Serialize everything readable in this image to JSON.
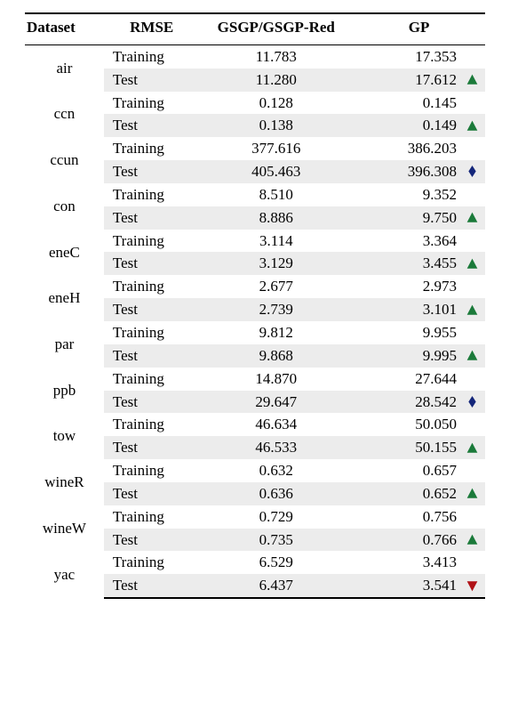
{
  "columns": {
    "dataset": "Dataset",
    "rmse": "RMSE",
    "gsgp": "GSGP/GSGP-Red",
    "gp": "GP"
  },
  "row_labels": {
    "training": "Training",
    "test": "Test"
  },
  "marker_colors": {
    "up": "#1b7a3a",
    "down": "#b01217",
    "diamond": "#14267a"
  },
  "alt_bg": "#ececec",
  "datasets": [
    {
      "name": "air",
      "training": {
        "gsgp": "11.783",
        "gp": "17.353"
      },
      "test": {
        "gsgp": "11.280",
        "gp": "17.612",
        "marker": "up"
      }
    },
    {
      "name": "ccn",
      "training": {
        "gsgp": "0.128",
        "gp": "0.145"
      },
      "test": {
        "gsgp": "0.138",
        "gp": "0.149",
        "marker": "up"
      }
    },
    {
      "name": "ccun",
      "training": {
        "gsgp": "377.616",
        "gp": "386.203"
      },
      "test": {
        "gsgp": "405.463",
        "gp": "396.308",
        "marker": "diamond"
      }
    },
    {
      "name": "con",
      "training": {
        "gsgp": "8.510",
        "gp": "9.352"
      },
      "test": {
        "gsgp": "8.886",
        "gp": "9.750",
        "marker": "up"
      }
    },
    {
      "name": "eneC",
      "training": {
        "gsgp": "3.114",
        "gp": "3.364"
      },
      "test": {
        "gsgp": "3.129",
        "gp": "3.455",
        "marker": "up"
      }
    },
    {
      "name": "eneH",
      "training": {
        "gsgp": "2.677",
        "gp": "2.973"
      },
      "test": {
        "gsgp": "2.739",
        "gp": "3.101",
        "marker": "up"
      }
    },
    {
      "name": "par",
      "training": {
        "gsgp": "9.812",
        "gp": "9.955"
      },
      "test": {
        "gsgp": "9.868",
        "gp": "9.995",
        "marker": "up"
      }
    },
    {
      "name": "ppb",
      "training": {
        "gsgp": "14.870",
        "gp": "27.644"
      },
      "test": {
        "gsgp": "29.647",
        "gp": "28.542",
        "marker": "diamond"
      }
    },
    {
      "name": "tow",
      "training": {
        "gsgp": "46.634",
        "gp": "50.050"
      },
      "test": {
        "gsgp": "46.533",
        "gp": "50.155",
        "marker": "up"
      }
    },
    {
      "name": "wineR",
      "training": {
        "gsgp": "0.632",
        "gp": "0.657"
      },
      "test": {
        "gsgp": "0.636",
        "gp": "0.652",
        "marker": "up"
      }
    },
    {
      "name": "wineW",
      "training": {
        "gsgp": "0.729",
        "gp": "0.756"
      },
      "test": {
        "gsgp": "0.735",
        "gp": "0.766",
        "marker": "up"
      }
    },
    {
      "name": "yac",
      "training": {
        "gsgp": "6.529",
        "gp": "3.413"
      },
      "test": {
        "gsgp": "6.437",
        "gp": "3.541",
        "marker": "down"
      }
    }
  ]
}
